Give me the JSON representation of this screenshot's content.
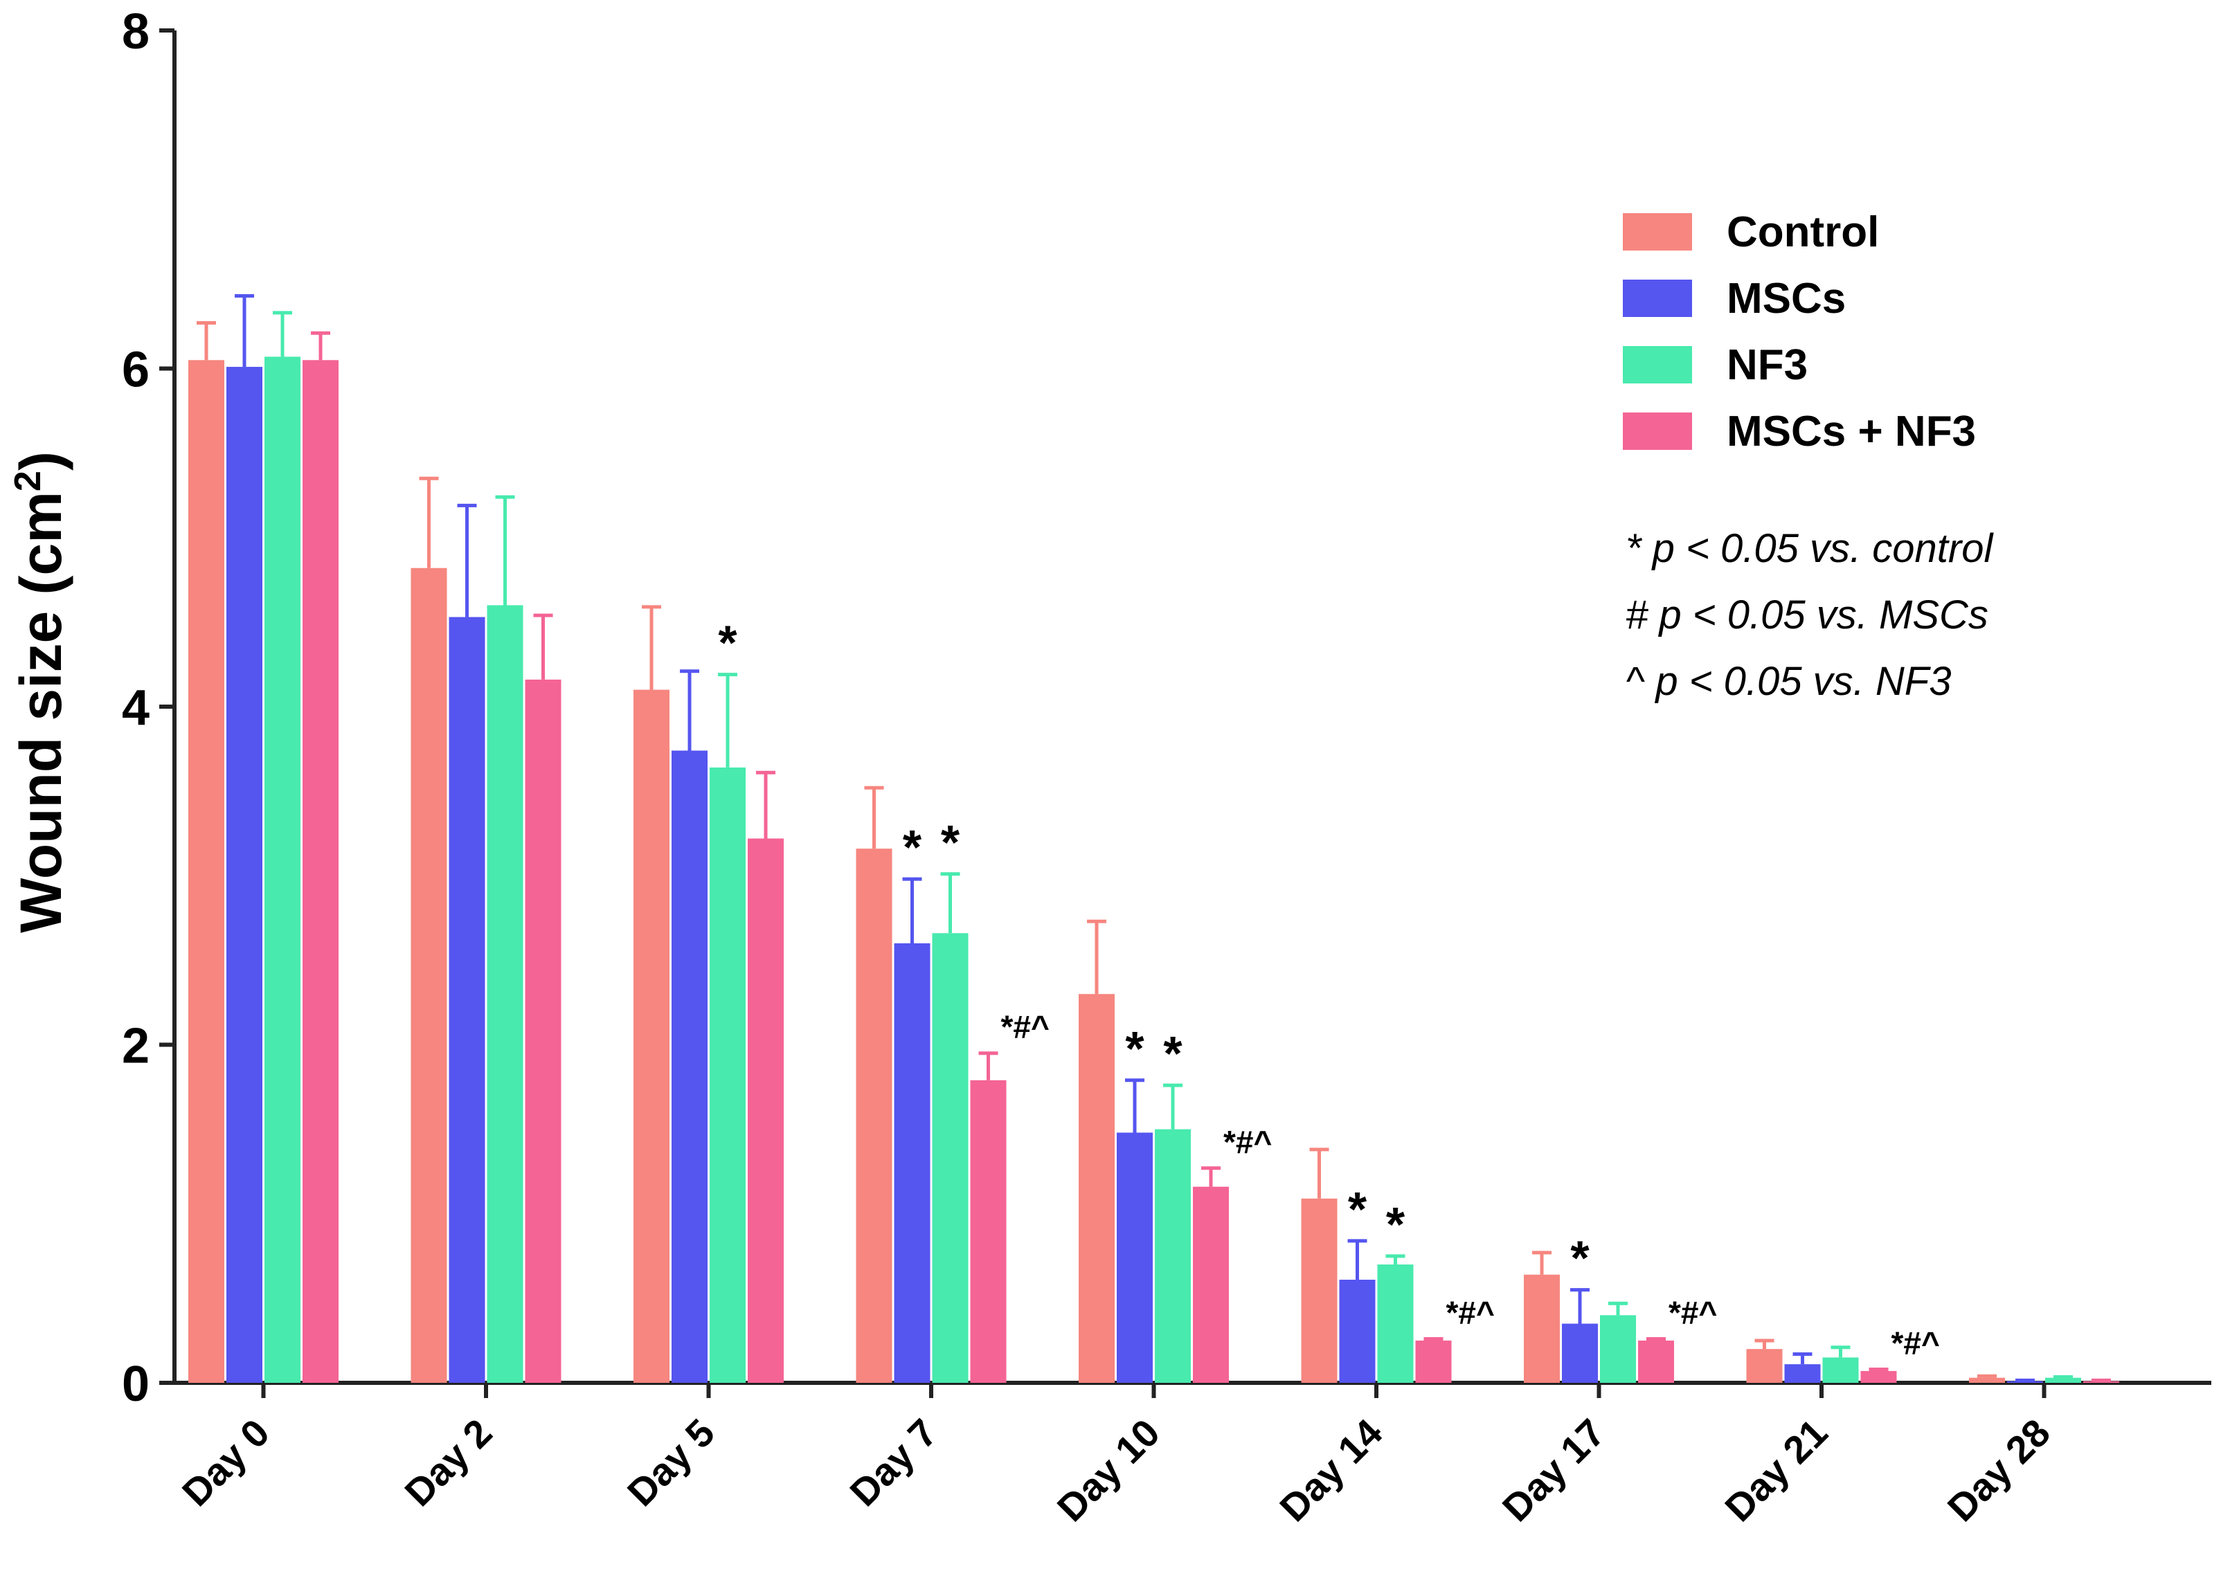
{
  "chart_data": {
    "type": "bar",
    "ylabel": "Wound size (cm²)",
    "ylabel_main": "Wound size (cm",
    "ylabel_sup": "2",
    "ylabel_close": ")",
    "ylim": [
      0,
      8
    ],
    "yticks": [
      "0",
      "2",
      "4",
      "6",
      "8"
    ],
    "categories": [
      "Day 0",
      "Day 2",
      "Day 5",
      "Day 7",
      "Day 10",
      "Day 14",
      "Day 17",
      "Day 21",
      "Day 28"
    ],
    "series": [
      {
        "name": "Control",
        "color": "#f6867f",
        "values": [
          6.05,
          4.82,
          4.1,
          3.16,
          2.3,
          1.09,
          0.64,
          0.2,
          0.03
        ],
        "errors": [
          0.22,
          0.53,
          0.49,
          0.36,
          0.43,
          0.29,
          0.13,
          0.05,
          0.01
        ]
      },
      {
        "name": "MSCs",
        "color": "#5555f0",
        "values": [
          6.01,
          4.53,
          3.74,
          2.6,
          1.48,
          0.61,
          0.35,
          0.11,
          0.01
        ],
        "errors": [
          0.42,
          0.66,
          0.47,
          0.38,
          0.31,
          0.23,
          0.2,
          0.06,
          0.005
        ]
      },
      {
        "name": "NF3",
        "color": "#48eaae",
        "values": [
          6.07,
          4.6,
          3.64,
          2.66,
          1.5,
          0.7,
          0.4,
          0.15,
          0.03
        ],
        "errors": [
          0.26,
          0.64,
          0.55,
          0.35,
          0.26,
          0.05,
          0.07,
          0.06,
          0.005
        ]
      },
      {
        "name": "MSCs + NF3",
        "color": "#f46495",
        "values": [
          6.05,
          4.16,
          3.22,
          1.79,
          1.16,
          0.25,
          0.25,
          0.07,
          0.01
        ],
        "errors": [
          0.16,
          0.38,
          0.39,
          0.16,
          0.11,
          0.01,
          0.01,
          0.01,
          0.005
        ]
      }
    ],
    "significance": [
      {
        "category": 2,
        "series": 2,
        "text": "*"
      },
      {
        "category": 3,
        "series": 1,
        "text": "*"
      },
      {
        "category": 3,
        "series": 2,
        "text": "*"
      },
      {
        "category": 3,
        "series": 3,
        "text": "*#^"
      },
      {
        "category": 4,
        "series": 1,
        "text": "*"
      },
      {
        "category": 4,
        "series": 2,
        "text": "*"
      },
      {
        "category": 4,
        "series": 3,
        "text": "*#^"
      },
      {
        "category": 5,
        "series": 1,
        "text": "*"
      },
      {
        "category": 5,
        "series": 2,
        "text": "*"
      },
      {
        "category": 5,
        "series": 3,
        "text": "*#^"
      },
      {
        "category": 6,
        "series": 1,
        "text": "*"
      },
      {
        "category": 6,
        "series": 3,
        "text": "*#^"
      },
      {
        "category": 7,
        "series": 3,
        "text": "*#^"
      }
    ],
    "legend_position": "top-right",
    "notes": [
      "* p < 0.05 vs. control",
      "# p < 0.05 vs. MSCs",
      "^ p < 0.05 vs. NF3"
    ],
    "grid": false
  }
}
